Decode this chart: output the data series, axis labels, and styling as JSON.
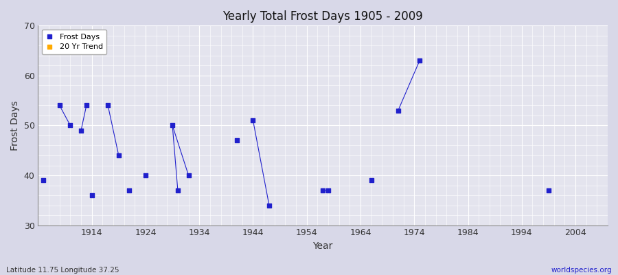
{
  "title": "Yearly Total Frost Days 1905 - 2009",
  "xlabel": "Year",
  "ylabel": "Frost Days",
  "bottom_left_label": "Latitude 11.75 Longitude 37.25",
  "bottom_right_label": "worldspecies.org",
  "xlim": [
    1904,
    2010
  ],
  "ylim": [
    30,
    70
  ],
  "yticks": [
    30,
    40,
    50,
    60,
    70
  ],
  "xticks": [
    1914,
    1924,
    1934,
    1944,
    1954,
    1964,
    1974,
    1984,
    1994,
    2004
  ],
  "fig_bg_color": "#d8d8e8",
  "plot_bg_color": "#e4e4ee",
  "frost_days_color": "#2020cc",
  "trend_color": "#ffaa00",
  "marker": "s",
  "marker_size": 4,
  "data_points": [
    [
      1905,
      39
    ],
    [
      1908,
      54
    ],
    [
      1910,
      50
    ],
    [
      1912,
      49
    ],
    [
      1913,
      54
    ],
    [
      1914,
      36
    ],
    [
      1917,
      54
    ],
    [
      1919,
      44
    ],
    [
      1921,
      37
    ],
    [
      1924,
      40
    ],
    [
      1929,
      50
    ],
    [
      1930,
      37
    ],
    [
      1932,
      40
    ],
    [
      1941,
      47
    ],
    [
      1944,
      51
    ],
    [
      1947,
      34
    ],
    [
      1957,
      37
    ],
    [
      1958,
      37
    ],
    [
      1966,
      39
    ],
    [
      1971,
      53
    ],
    [
      1975,
      63
    ],
    [
      1999,
      37
    ]
  ],
  "line_groups": [
    [
      1908,
      1910
    ],
    [
      1912,
      1913
    ],
    [
      1917,
      1919
    ],
    [
      1929,
      1930
    ],
    [
      1929,
      1932
    ],
    [
      1944,
      1947
    ],
    [
      1957,
      1958
    ],
    [
      1971,
      1975
    ]
  ]
}
